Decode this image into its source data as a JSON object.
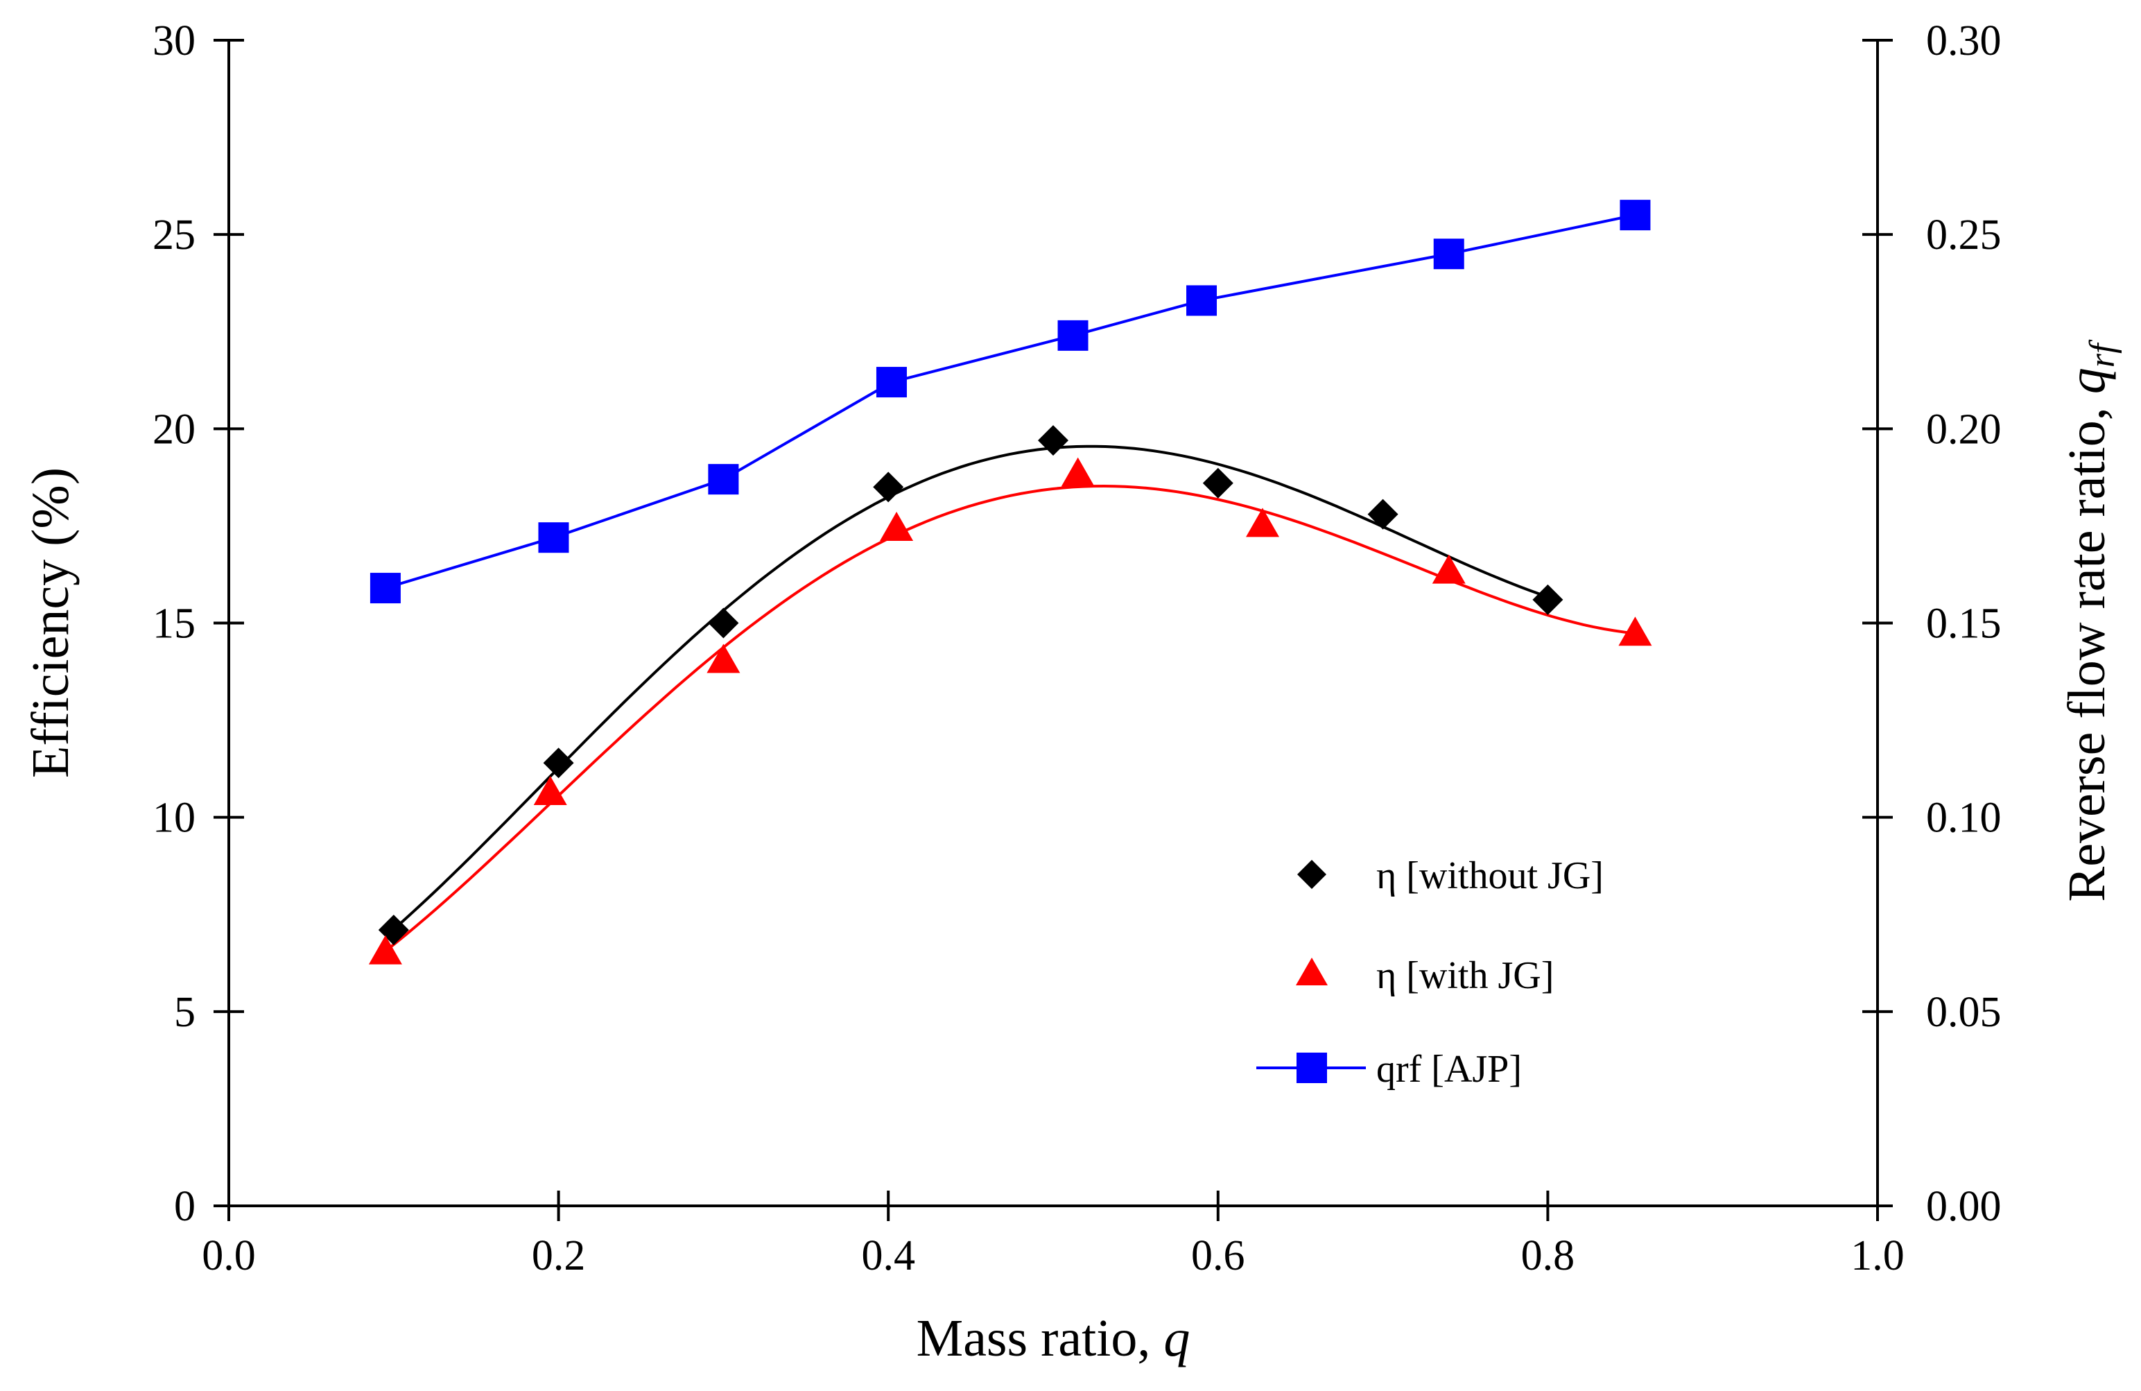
{
  "chart_data": {
    "type": "line",
    "title": "",
    "xlabel": "Mass ratio, ",
    "xlabel_var": "q",
    "ylabel": "Efficiency (%)",
    "y2label": "Reverse flow rate ratio, ",
    "y2label_var": "q",
    "y2label_sub": "rf",
    "xlim": [
      0.0,
      1.0
    ],
    "ylim": [
      0,
      30
    ],
    "y2lim": [
      0.0,
      0.3
    ],
    "xticks": [
      "0.0",
      "0.2",
      "0.4",
      "0.6",
      "0.8",
      "1.0"
    ],
    "xtick_values": [
      0.0,
      0.2,
      0.4,
      0.6,
      0.8,
      1.0
    ],
    "yticks": [
      "0",
      "5",
      "10",
      "15",
      "20",
      "25",
      "30"
    ],
    "ytick_values": [
      0,
      5,
      10,
      15,
      20,
      25,
      30
    ],
    "y2ticks": [
      "0.00",
      "0.05",
      "0.10",
      "0.15",
      "0.20",
      "0.25",
      "0.30"
    ],
    "y2tick_values": [
      0.0,
      0.05,
      0.1,
      0.15,
      0.2,
      0.25,
      0.3
    ],
    "grid": false,
    "legend_position": "bottom-right",
    "series": [
      {
        "name": "η [without JG]",
        "axis": "left",
        "marker": "diamond",
        "color": "#000000",
        "line": "smooth-fit",
        "x": [
          0.1,
          0.2,
          0.3,
          0.4,
          0.5,
          0.6,
          0.7,
          0.8
        ],
        "y": [
          7.1,
          11.4,
          15.0,
          18.5,
          19.7,
          18.6,
          17.8,
          15.6
        ]
      },
      {
        "name": "η [with JG]",
        "axis": "left",
        "marker": "triangle",
        "color": "#ff0000",
        "line": "smooth-fit",
        "x": [
          0.095,
          0.195,
          0.3,
          0.405,
          0.515,
          0.627,
          0.74,
          0.853
        ],
        "y": [
          6.5,
          10.6,
          14.0,
          17.4,
          18.8,
          17.5,
          16.3,
          14.7
        ]
      },
      {
        "name": "qrf [AJP]",
        "axis": "right",
        "marker": "square",
        "color": "#0000ff",
        "line": "straight",
        "x": [
          0.095,
          0.197,
          0.3,
          0.402,
          0.512,
          0.59,
          0.74,
          0.853
        ],
        "y": [
          0.159,
          0.172,
          0.187,
          0.212,
          0.224,
          0.233,
          0.245,
          0.255
        ]
      }
    ]
  }
}
